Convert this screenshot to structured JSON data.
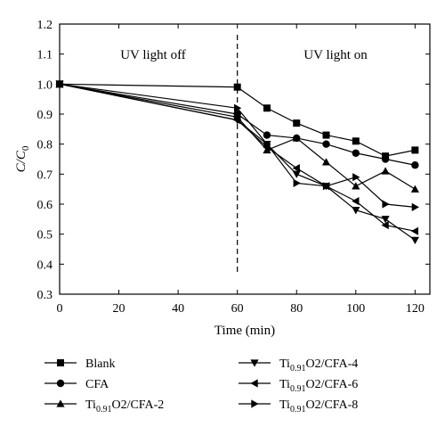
{
  "chart_data": {
    "type": "line",
    "xlabel": "Time (min)",
    "ylabel": "C/C0",
    "ylabel_parts": {
      "main": "C/C",
      "sub": "0"
    },
    "xlim": [
      0,
      125
    ],
    "ylim": [
      0.3,
      1.2
    ],
    "xticks": [
      0,
      20,
      40,
      60,
      80,
      100,
      120
    ],
    "yticks": [
      0.3,
      0.4,
      0.5,
      0.6,
      0.7,
      0.8,
      0.9,
      1.0,
      1.1,
      1.2
    ],
    "x": [
      0,
      60,
      70,
      80,
      90,
      100,
      110,
      120
    ],
    "annotations": [
      "UV light off",
      "UV light on"
    ],
    "divider_x": 60,
    "grid": false,
    "legend_position": "below",
    "series": [
      {
        "name": "Blank",
        "name_parts": {
          "a": "Blank",
          "sub": "",
          "b": ""
        },
        "marker": "square",
        "values": [
          1.0,
          0.99,
          0.92,
          0.87,
          0.83,
          0.81,
          0.76,
          0.78
        ]
      },
      {
        "name": "CFA",
        "name_parts": {
          "a": "CFA",
          "sub": "",
          "b": ""
        },
        "marker": "circle",
        "values": [
          1.0,
          0.9,
          0.83,
          0.82,
          0.8,
          0.77,
          0.75,
          0.73
        ]
      },
      {
        "name": "Ti0.91O2/CFA-2",
        "name_parts": {
          "a": "Ti",
          "sub": "0.91",
          "b": "O2/CFA-2"
        },
        "marker": "triangle-up",
        "values": [
          1.0,
          0.89,
          0.78,
          0.82,
          0.74,
          0.66,
          0.71,
          0.65
        ]
      },
      {
        "name": "Ti0.91O2/CFA-4",
        "name_parts": {
          "a": "Ti",
          "sub": "0.91",
          "b": "O2/CFA-4"
        },
        "marker": "triangle-down",
        "values": [
          1.0,
          0.88,
          0.8,
          0.7,
          0.66,
          0.58,
          0.55,
          0.48
        ]
      },
      {
        "name": "Ti0.91O2/CFA-6",
        "name_parts": {
          "a": "Ti",
          "sub": "0.91",
          "b": "O2/CFA-6"
        },
        "marker": "triangle-left",
        "values": [
          1.0,
          0.88,
          0.79,
          0.72,
          0.66,
          0.61,
          0.53,
          0.51
        ]
      },
      {
        "name": "Ti0.91O2/CFA-8",
        "name_parts": {
          "a": "Ti",
          "sub": "0.91",
          "b": "O2/CFA-8"
        },
        "marker": "triangle-right",
        "values": [
          1.0,
          0.92,
          0.8,
          0.67,
          0.66,
          0.69,
          0.6,
          0.59
        ]
      }
    ]
  }
}
